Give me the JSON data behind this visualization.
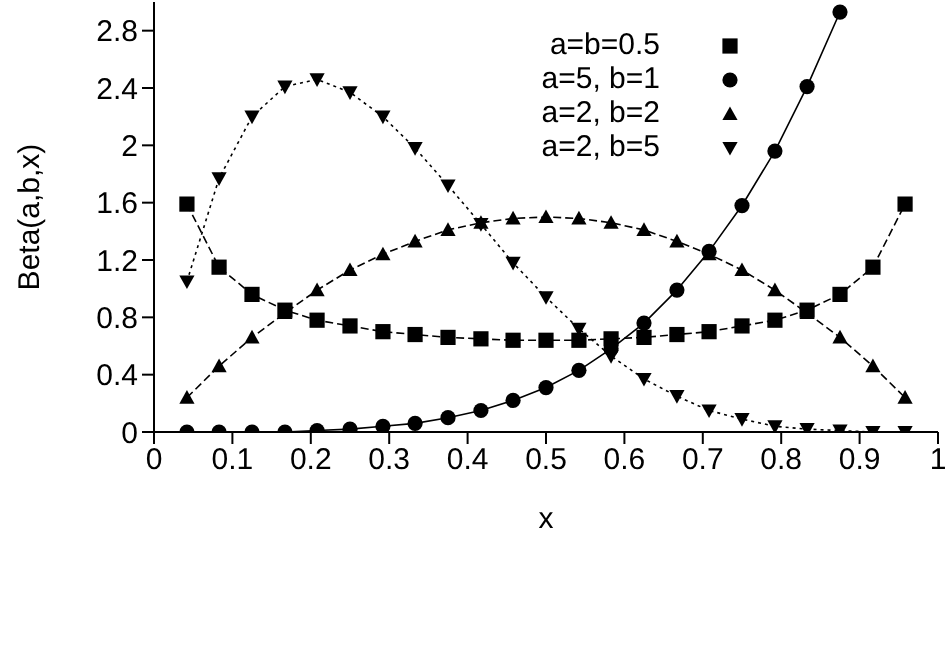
{
  "chart_data": {
    "type": "line",
    "xlabel": "x",
    "ylabel": "Beta(a,b,x)",
    "x": [
      0.042,
      0.083,
      0.125,
      0.167,
      0.208,
      0.25,
      0.292,
      0.333,
      0.375,
      0.417,
      0.458,
      0.5,
      0.542,
      0.583,
      0.625,
      0.667,
      0.708,
      0.75,
      0.792,
      0.833,
      0.875,
      0.917,
      0.958
    ],
    "xlim": [
      0,
      1
    ],
    "xticks": [
      0,
      0.1,
      0.2,
      0.3,
      0.4,
      0.5,
      0.6,
      0.7,
      0.8,
      0.9,
      1
    ],
    "ylim": [
      0,
      3
    ],
    "yticks": [
      0,
      0.4,
      0.8,
      1.2,
      1.6,
      2,
      2.4,
      2.8
    ],
    "legend": "top",
    "series": [
      {
        "name": "a=b=0.5",
        "color": "#000000",
        "marker": "square",
        "line_style": "dashed",
        "values": [
          1.59,
          1.15,
          0.96,
          0.85,
          0.78,
          0.74,
          0.7,
          0.68,
          0.66,
          0.65,
          0.64,
          0.64,
          0.64,
          0.65,
          0.66,
          0.68,
          0.7,
          0.74,
          0.78,
          0.85,
          0.96,
          1.15,
          1.59
        ]
      },
      {
        "name": "a=5, b=1",
        "color": "#000000",
        "marker": "circle",
        "line_style": "solid",
        "values": [
          0.0,
          0.0,
          0.0,
          0.0,
          0.01,
          0.02,
          0.04,
          0.06,
          0.1,
          0.15,
          0.22,
          0.31,
          0.43,
          0.58,
          0.76,
          0.99,
          1.26,
          1.58,
          1.96,
          2.41,
          2.93,
          null,
          null
        ]
      },
      {
        "name": "a=2, b=2",
        "color": "#000000",
        "marker": "triangle",
        "line_style": "dashed",
        "values": [
          0.24,
          0.46,
          0.66,
          0.83,
          0.99,
          1.13,
          1.24,
          1.33,
          1.41,
          1.46,
          1.49,
          1.5,
          1.49,
          1.46,
          1.41,
          1.33,
          1.24,
          1.13,
          0.99,
          0.83,
          0.66,
          0.46,
          0.24
        ]
      },
      {
        "name": "a=2, b=5",
        "color": "#000000",
        "marker": "triangle-down",
        "line_style": "dotted",
        "values": [
          1.05,
          1.77,
          2.2,
          2.41,
          2.46,
          2.37,
          2.2,
          1.98,
          1.72,
          1.45,
          1.18,
          0.94,
          0.72,
          0.53,
          0.37,
          0.25,
          0.15,
          0.09,
          0.04,
          0.02,
          0.01,
          0.0,
          0.0
        ]
      }
    ]
  }
}
